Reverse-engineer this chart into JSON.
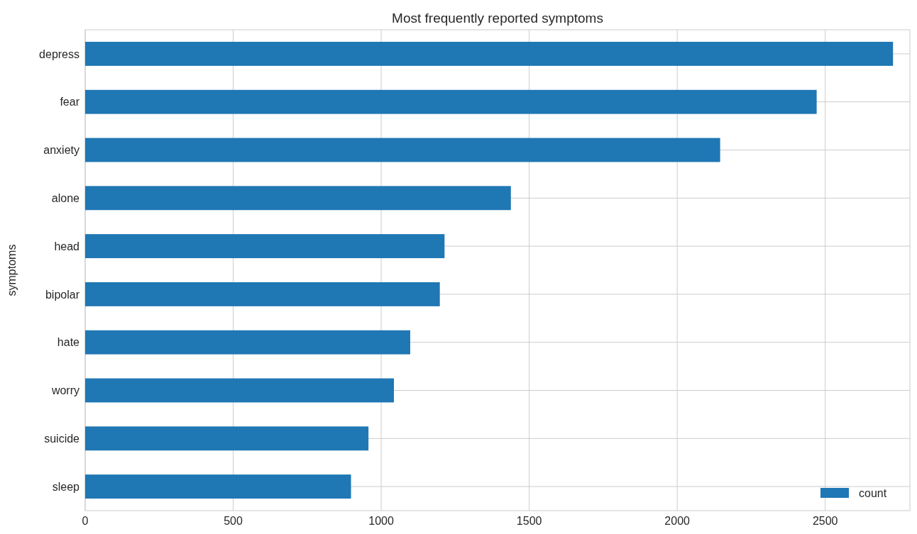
{
  "chart_data": {
    "type": "bar",
    "orientation": "horizontal",
    "title": "Most frequently reported symptoms",
    "ylabel": "symptoms",
    "categories": [
      "depress",
      "fear",
      "anxiety",
      "alone",
      "head",
      "bipolar",
      "hate",
      "worry",
      "suicide",
      "sleep"
    ],
    "series": [
      {
        "name": "count",
        "color": "#1f77b4",
        "values": [
          2729,
          2471,
          2145,
          1438,
          1214,
          1198,
          1098,
          1043,
          957,
          898
        ]
      }
    ],
    "xlim": [
      0,
      2786
    ],
    "xticks": [
      0,
      500,
      1000,
      1500,
      2000,
      2500
    ],
    "grid": true,
    "legend": "bottom right"
  }
}
